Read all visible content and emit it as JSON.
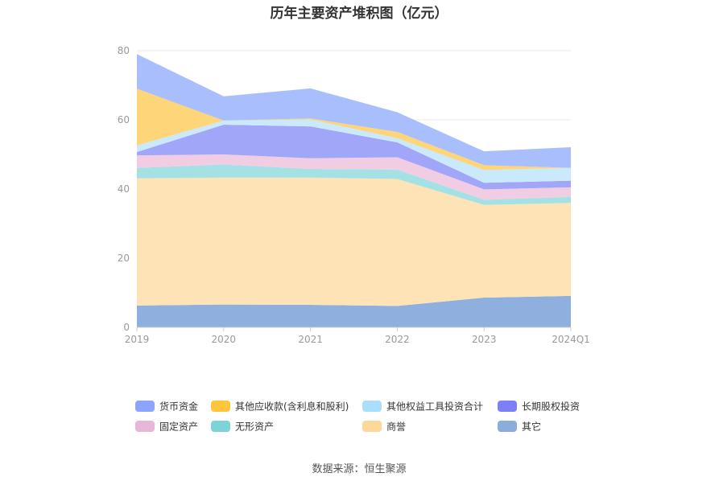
{
  "chart_data": {
    "type": "area",
    "stacked": true,
    "title": "历年主要资产堆积图（亿元）",
    "xlabel": "",
    "ylabel": "",
    "categories": [
      "2019",
      "2020",
      "2021",
      "2022",
      "2023",
      "2024Q1"
    ],
    "ylim": [
      0,
      80
    ],
    "yticks": [
      0,
      20,
      40,
      60,
      80
    ],
    "grid": true,
    "legend_position": "bottom",
    "series": [
      {
        "name": "其它",
        "color": "#8fb0de",
        "values": [
          6.3,
          6.6,
          6.5,
          6.2,
          8.6,
          9.1
        ]
      },
      {
        "name": "商誉",
        "color": "#fde3b5",
        "values": [
          36.8,
          36.7,
          36.8,
          36.7,
          26.8,
          26.9
        ]
      },
      {
        "name": "无形资产",
        "color": "#a3e1e4",
        "values": [
          3.0,
          3.8,
          2.5,
          2.7,
          1.5,
          1.7
        ]
      },
      {
        "name": "固定资产",
        "color": "#f0cde3",
        "values": [
          3.6,
          2.9,
          3.1,
          3.6,
          3.0,
          2.8
        ]
      },
      {
        "name": "长期股权投资",
        "color": "#a1a6f8",
        "values": [
          1.0,
          8.6,
          9.2,
          4.3,
          1.9,
          1.9
        ]
      },
      {
        "name": "其他权益工具投资合计",
        "color": "#cbe9fc",
        "values": [
          1.9,
          1.2,
          2.0,
          1.2,
          3.7,
          3.7
        ]
      },
      {
        "name": "其他应收款(含利息和股利)",
        "color": "#fed579",
        "values": [
          16.4,
          0.0,
          0.3,
          1.8,
          1.4,
          0.0
        ]
      },
      {
        "name": "货币资金",
        "color": "#a9bffd",
        "values": [
          10.0,
          7.0,
          8.7,
          5.7,
          4.0,
          6.0
        ]
      }
    ],
    "legend": [
      {
        "name": "货币资金",
        "color": "#8aa5fb"
      },
      {
        "name": "其他应收款(含利息和股利)",
        "color": "#ffc53d"
      },
      {
        "name": "其他权益工具投资合计",
        "color": "#aadffb"
      },
      {
        "name": "长期股权投资",
        "color": "#7b80f4"
      },
      {
        "name": "固定资产",
        "color": "#e6b7d8"
      },
      {
        "name": "无形资产",
        "color": "#7ed3d6"
      },
      {
        "name": "商誉",
        "color": "#fdd89b"
      },
      {
        "name": "其它",
        "color": "#8caddb"
      }
    ]
  },
  "source": "数据来源：恒生聚源"
}
